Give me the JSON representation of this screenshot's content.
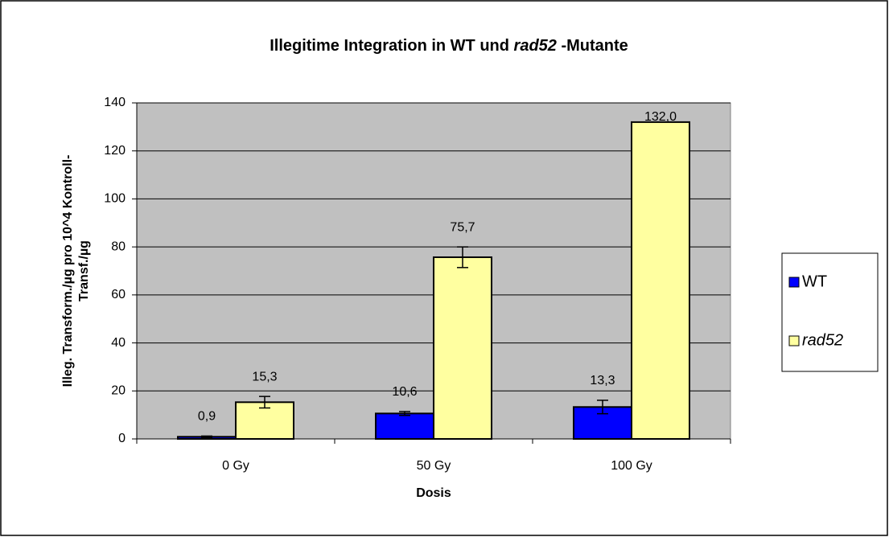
{
  "chart_data": {
    "type": "bar",
    "title": [
      "Illegitime Integration in WT und",
      "rad52",
      "-Mutante"
    ],
    "xlabel": "Dosis",
    "ylabel": [
      "Illeg. Transform./µg pro 10^4 Kontroll-",
      "Transf./µg"
    ],
    "categories": [
      "0 Gy",
      "50 Gy",
      "100 Gy"
    ],
    "series": [
      {
        "name": "WT",
        "color": "#0000ff",
        "values": [
          0.9,
          10.6,
          13.3
        ],
        "value_labels": [
          "0,9",
          "10,6",
          "13,3"
        ],
        "errors": [
          0.3,
          0.8,
          2.8
        ]
      },
      {
        "name": "rad52",
        "color": "#ffffa0",
        "values": [
          15.3,
          75.7,
          132.0
        ],
        "value_labels": [
          "15,3",
          "75,7",
          "132,0"
        ],
        "errors": [
          2.4,
          4.3,
          0
        ]
      }
    ],
    "ylim": [
      0,
      140
    ],
    "yticks": [
      0,
      20,
      40,
      60,
      80,
      100,
      120,
      140
    ],
    "grid": true,
    "legend": "right"
  }
}
